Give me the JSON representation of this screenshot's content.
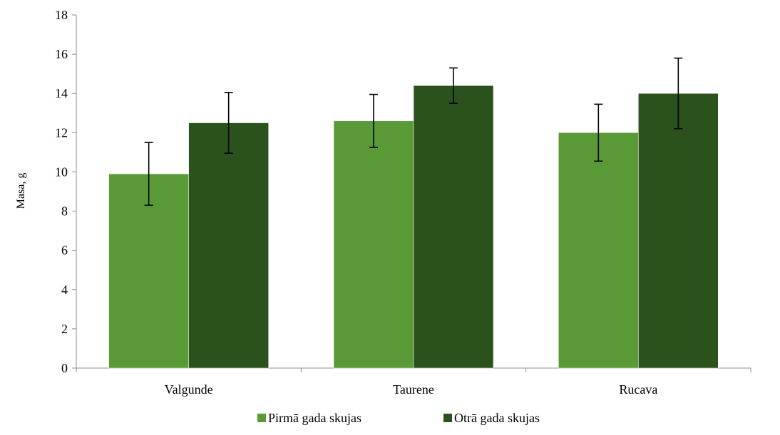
{
  "chart_data": {
    "type": "bar",
    "categories": [
      "Valgunde",
      "Taurene",
      "Rucava"
    ],
    "series": [
      {
        "name": "Pirmā gada skujas",
        "values": [
          9.9,
          12.6,
          12.0
        ],
        "error": [
          1.6,
          1.35,
          1.45
        ],
        "color": "#5a9a36"
      },
      {
        "name": "Otrā gada skujas",
        "values": [
          12.5,
          14.4,
          14.0
        ],
        "error": [
          1.55,
          0.9,
          1.8
        ],
        "color": "#2b521d"
      }
    ],
    "ylabel": "Masa, g",
    "xlabel": "",
    "ylim": [
      0,
      18
    ],
    "yticks": [
      "0",
      "2",
      "4",
      "6",
      "8",
      "10",
      "12",
      "14",
      "16",
      "18"
    ],
    "grid": false,
    "legend_position": "bottom"
  }
}
